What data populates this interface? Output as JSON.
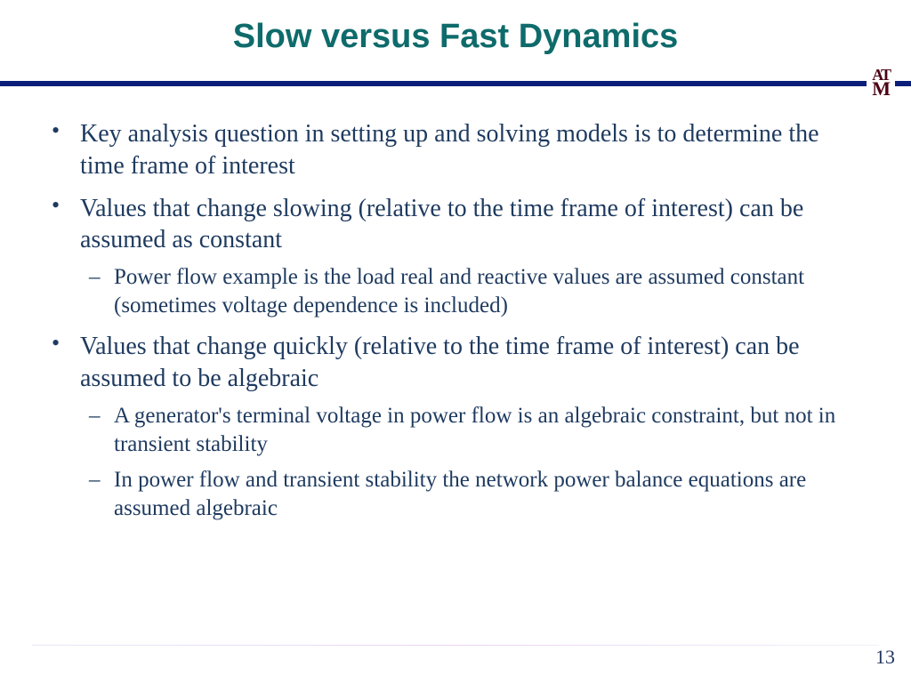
{
  "title": "Slow versus Fast Dynamics",
  "title_color": "#0f6b6b",
  "title_fontsize": 38,
  "rule_color": "#0b1e7a",
  "rule_width": 6,
  "logo_color": "#4c0013",
  "logo_top": "AT",
  "logo_bottom": "M",
  "body_color": "#1e3a5f",
  "body_fontsize": 28,
  "sub_fontsize": 25,
  "bullets": [
    {
      "text": "Key analysis question in setting up and solving models is to determine the time frame of interest",
      "subs": []
    },
    {
      "text": "Values that change slowing (relative to the time frame of interest) can be assumed as constant",
      "subs": [
        "Power flow example is the load real and reactive values are assumed constant (sometimes voltage dependence is included)"
      ]
    },
    {
      "text": "Values that change quickly (relative to the time frame of interest) can be assumed to be algebraic",
      "subs": [
        "A generator's terminal voltage in power flow is an algebraic constraint, but not in transient stability",
        "In power flow and transient stability the network power balance equations are assumed algebraic"
      ]
    }
  ],
  "page_number": "13",
  "pagenum_color": "#20365f",
  "pagenum_fontsize": 22
}
